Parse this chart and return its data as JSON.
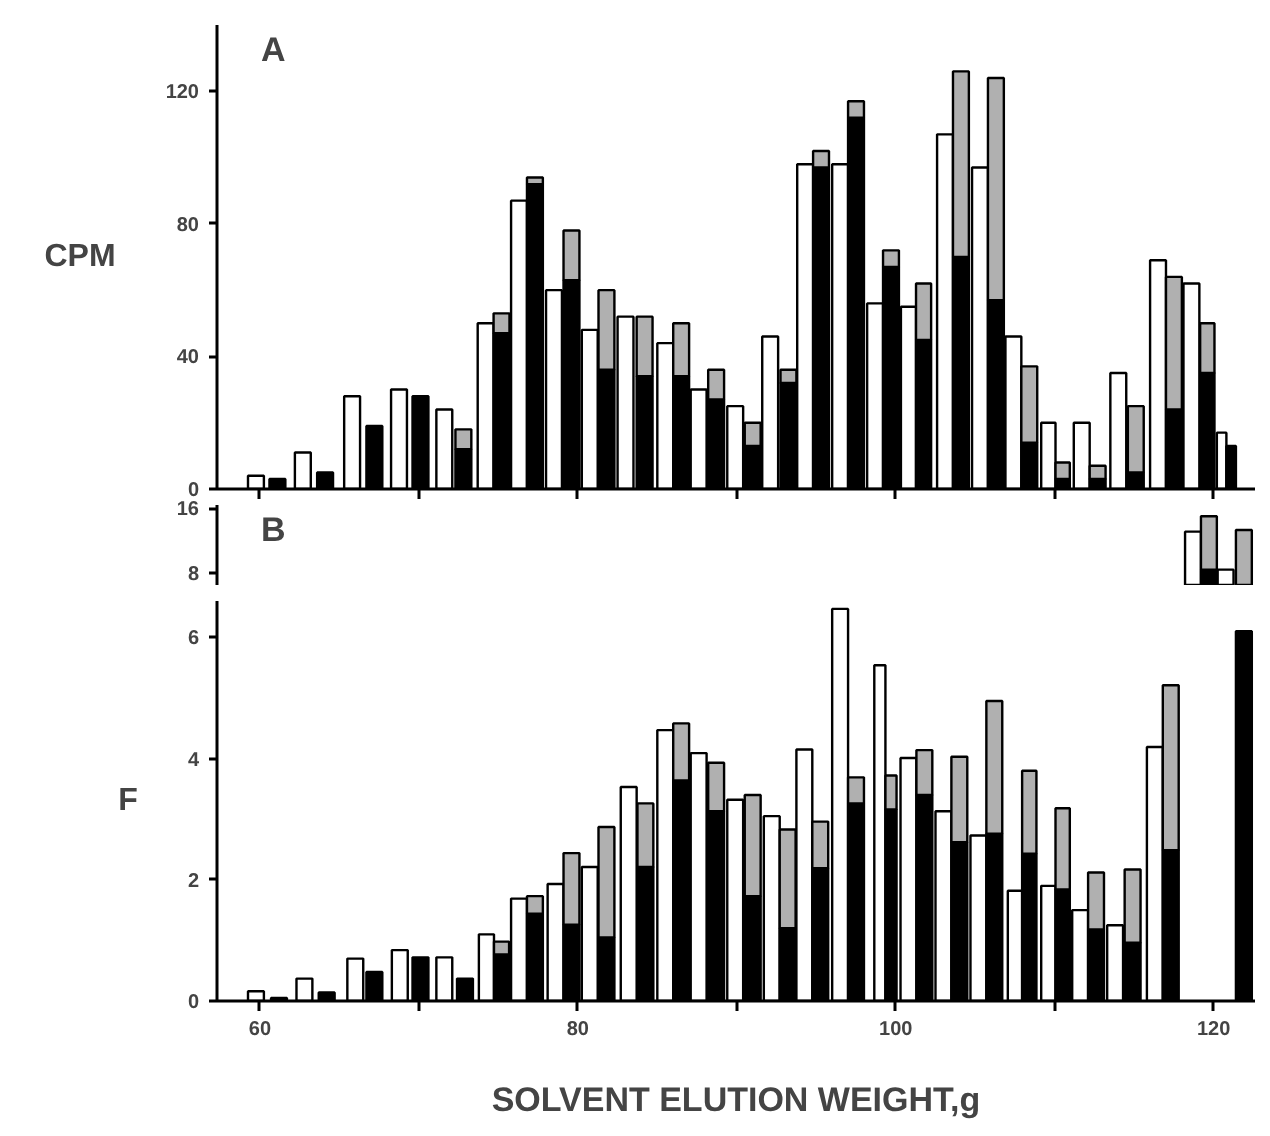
{
  "chart_data": [
    {
      "type": "bar",
      "title": "A",
      "ylabel": "CPM",
      "stacked": true,
      "tick_labels": "y",
      "grid": false,
      "xlim": [
        57.3,
        122.6
      ],
      "ylim": [
        0,
        140
      ],
      "xticks": [
        {
          "value": 60,
          "label": null
        },
        {
          "value": 70,
          "label": null
        },
        {
          "value": 80,
          "label": null
        },
        {
          "value": 90,
          "label": null
        },
        {
          "value": 100,
          "label": null
        },
        {
          "value": 110,
          "label": null
        },
        {
          "value": 120,
          "label": null
        }
      ],
      "yticks": [
        0,
        40,
        80,
        120
      ],
      "x": [
        59.75,
        61.1,
        62.7,
        64.1,
        65.8,
        67.2,
        68.75,
        70.1,
        71.6,
        72.8,
        74.2,
        75.2,
        76.3,
        77.3,
        78.5,
        79.6,
        80.75,
        81.8,
        83.0,
        84.2,
        85.5,
        86.5,
        87.6,
        88.7,
        89.9,
        91.0,
        92.1,
        93.25,
        94.3,
        95.3,
        96.5,
        97.5,
        98.7,
        99.7,
        100.8,
        101.75,
        103.1,
        104.1,
        105.3,
        106.3,
        107.4,
        108.4,
        109.6,
        110.5,
        111.7,
        112.7,
        114.0,
        115.1,
        116.5,
        117.5,
        118.6,
        119.6,
        120.5,
        121.1
      ],
      "series": [
        {
          "color": "#ffffff",
          "values": [
            4,
            null,
            11,
            null,
            28,
            null,
            30,
            null,
            24,
            null,
            50,
            null,
            87,
            null,
            60,
            null,
            48,
            null,
            52,
            null,
            44,
            null,
            30,
            null,
            25,
            null,
            46,
            null,
            98,
            null,
            98,
            null,
            56,
            null,
            55,
            null,
            107,
            null,
            97,
            null,
            46,
            null,
            20,
            null,
            20,
            null,
            35,
            null,
            69,
            null,
            62,
            null,
            17,
            null
          ]
        },
        {
          "color": "#000000",
          "values": [
            null,
            3,
            null,
            5,
            null,
            19,
            null,
            28,
            null,
            12,
            null,
            47,
            null,
            92,
            null,
            63,
            null,
            36,
            null,
            34,
            null,
            34,
            null,
            27,
            null,
            13,
            null,
            32,
            null,
            97,
            null,
            112,
            null,
            67,
            null,
            45,
            null,
            70,
            null,
            57,
            null,
            14,
            null,
            3,
            null,
            3,
            null,
            5,
            null,
            24,
            null,
            35,
            null,
            13
          ]
        },
        {
          "color": "#b0b0b0",
          "values": [
            null,
            null,
            null,
            null,
            null,
            null,
            null,
            null,
            null,
            6,
            null,
            6,
            null,
            2,
            null,
            15,
            null,
            24,
            null,
            18,
            null,
            16,
            null,
            9,
            null,
            7,
            null,
            4,
            null,
            5,
            null,
            5,
            null,
            5,
            null,
            17,
            null,
            56,
            null,
            67,
            null,
            23,
            null,
            5,
            null,
            4,
            null,
            20,
            null,
            40,
            null,
            15,
            null,
            null
          ]
        }
      ]
    },
    {
      "type": "bar",
      "title": "B",
      "stacked": true,
      "tick_labels": "y",
      "grid": false,
      "xlim": [
        57.3,
        122.6
      ],
      "ylim": [
        6.5,
        16.4
      ],
      "yticks": [
        8,
        16
      ],
      "x": [
        118.7,
        119.7,
        120.75,
        121.9
      ],
      "series": [
        {
          "color": "#ffffff",
          "values": [
            13.1,
            null,
            8.4,
            null
          ]
        },
        {
          "color": "#000000",
          "values": [
            null,
            8.4,
            null,
            null
          ]
        },
        {
          "color": "#b0b0b0",
          "values": [
            null,
            6.6,
            null,
            13.3
          ]
        }
      ]
    },
    {
      "type": "bar",
      "ylabel": "F",
      "xlabel": "SOLVENT ELUTION WEIGHT,g",
      "stacked": true,
      "grid": false,
      "xlim": [
        57.3,
        122.6
      ],
      "ylim": [
        0,
        6.6
      ],
      "xticks": [
        60,
        {
          "value": 70,
          "label": null
        },
        80,
        {
          "value": 90,
          "label": null
        },
        100,
        {
          "value": 110,
          "label": null
        },
        120
      ],
      "yticks": [
        0,
        2,
        4,
        6
      ],
      "x": [
        59.75,
        61.2,
        62.8,
        64.2,
        66.0,
        67.2,
        68.8,
        70.1,
        71.6,
        72.9,
        74.25,
        75.2,
        76.3,
        77.3,
        78.6,
        79.6,
        80.75,
        81.8,
        83.2,
        84.25,
        85.5,
        86.5,
        87.6,
        88.7,
        89.9,
        91.0,
        92.2,
        93.2,
        94.25,
        95.25,
        96.5,
        97.5,
        99.0,
        99.7,
        100.8,
        101.8,
        103.0,
        104.0,
        105.2,
        106.2,
        107.5,
        108.4,
        109.6,
        110.5,
        111.6,
        112.6,
        113.8,
        114.9,
        116.3,
        117.3,
        121.9
      ],
      "series": [
        {
          "color": "#ffffff",
          "values": [
            0.16,
            null,
            0.37,
            null,
            0.7,
            null,
            0.84,
            null,
            0.72,
            null,
            1.1,
            null,
            1.69,
            null,
            1.93,
            null,
            2.21,
            null,
            3.53,
            null,
            4.47,
            null,
            4.09,
            null,
            3.32,
            null,
            3.05,
            null,
            4.15,
            null,
            6.47,
            null,
            5.54,
            null,
            4.01,
            null,
            3.13,
            null,
            2.73,
            null,
            1.82,
            null,
            1.9,
            null,
            1.5,
            null,
            1.25,
            null,
            4.19,
            null,
            null
          ]
        },
        {
          "color": "#000000",
          "values": [
            null,
            0.05,
            null,
            0.14,
            null,
            0.48,
            null,
            0.72,
            null,
            0.37,
            null,
            0.77,
            null,
            1.44,
            null,
            1.26,
            null,
            1.05,
            null,
            2.21,
            null,
            3.64,
            null,
            3.13,
            null,
            1.73,
            null,
            1.2,
            null,
            2.19,
            null,
            3.26,
            null,
            3.16,
            null,
            3.4,
            null,
            2.62,
            null,
            2.76,
            null,
            2.43,
            null,
            1.84,
            null,
            1.18,
            null,
            0.96,
            null,
            2.49,
            6.1
          ]
        },
        {
          "color": "#b0b0b0",
          "values": [
            null,
            null,
            null,
            null,
            null,
            null,
            null,
            null,
            null,
            null,
            null,
            0.21,
            null,
            0.29,
            null,
            1.18,
            null,
            1.82,
            null,
            1.05,
            null,
            0.94,
            null,
            0.8,
            null,
            1.67,
            null,
            1.63,
            null,
            0.77,
            null,
            0.43,
            null,
            0.56,
            null,
            0.74,
            null,
            1.41,
            null,
            2.19,
            null,
            1.37,
            null,
            1.34,
            null,
            0.94,
            null,
            1.21,
            null,
            2.72,
            null
          ]
        }
      ]
    }
  ]
}
